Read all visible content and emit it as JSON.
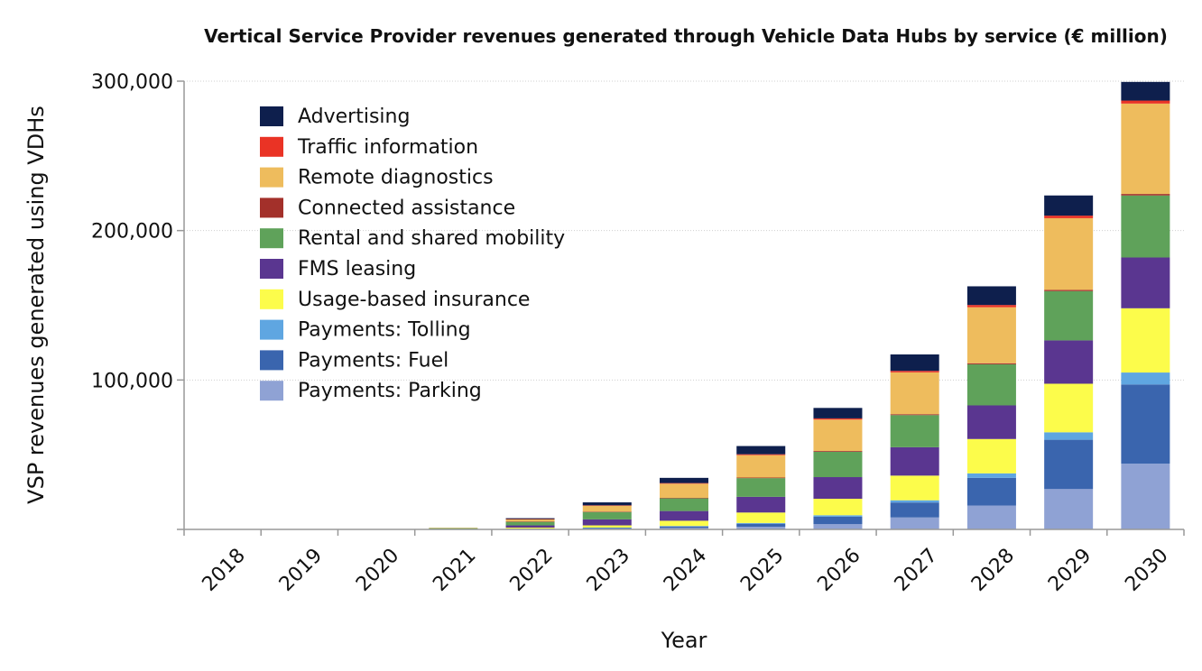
{
  "chart_data": {
    "type": "bar",
    "stacked": true,
    "title": "Vertical Service Provider revenues generated through Vehicle Data Hubs by service (€ million)",
    "xlabel": "Year",
    "ylabel": "VSP revenues generated using VDHs",
    "ylim": [
      0,
      300000
    ],
    "yticks": [
      "300,000",
      "200,000",
      "100,000"
    ],
    "ytick_values": [
      300000,
      200000,
      100000
    ],
    "grid": true,
    "legend_position": "top-left",
    "categories": [
      "2018",
      "2019",
      "2020",
      "2021",
      "2022",
      "2023",
      "2024",
      "2025",
      "2026",
      "2027",
      "2028",
      "2029",
      "2030"
    ],
    "series": [
      {
        "name": "Payments: Parking",
        "color": "#8fa2d4",
        "values": [
          0,
          0,
          0,
          0,
          200,
          500,
          1000,
          1800,
          3500,
          8000,
          16000,
          27000,
          44000
        ]
      },
      {
        "name": "Payments: Fuel",
        "color": "#3a65ae",
        "values": [
          0,
          0,
          0,
          0,
          200,
          500,
          1000,
          2000,
          5000,
          10000,
          18500,
          33000,
          53000
        ]
      },
      {
        "name": "Payments: Tolling",
        "color": "#5fa6e1",
        "values": [
          0,
          0,
          0,
          0,
          100,
          200,
          300,
          500,
          1000,
          1500,
          3000,
          5000,
          8000
        ]
      },
      {
        "name": "Usage-based insurance",
        "color": "#fcfc4b",
        "values": [
          0,
          0,
          0,
          0,
          700,
          1500,
          3500,
          7000,
          11000,
          16500,
          23000,
          32500,
          43000
        ]
      },
      {
        "name": "FMS leasing",
        "color": "#5a3690",
        "values": [
          0,
          0,
          0,
          200,
          1500,
          4000,
          6500,
          10500,
          14500,
          19000,
          22500,
          29000,
          34000
        ]
      },
      {
        "name": "Rental and shared mobility",
        "color": "#5fa25a",
        "values": [
          0,
          0,
          0,
          700,
          2500,
          5000,
          8500,
          12500,
          17000,
          21500,
          27500,
          33000,
          41500
        ]
      },
      {
        "name": "Connected assistance",
        "color": "#a3302a",
        "values": [
          0,
          0,
          0,
          0,
          100,
          200,
          300,
          400,
          500,
          600,
          700,
          800,
          1000
        ]
      },
      {
        "name": "Remote diagnostics",
        "color": "#eebc5d",
        "values": [
          0,
          0,
          0,
          200,
          1500,
          4000,
          9500,
          15000,
          21000,
          28000,
          37500,
          48000,
          60500
        ]
      },
      {
        "name": "Traffic information",
        "color": "#ea3325",
        "values": [
          0,
          0,
          0,
          0,
          100,
          200,
          400,
          600,
          800,
          1000,
          1500,
          1700,
          2000
        ]
      },
      {
        "name": "Advertising",
        "color": "#0e1f4d",
        "values": [
          0,
          0,
          0,
          0,
          600,
          2000,
          3500,
          5500,
          7000,
          11000,
          12500,
          13500,
          12500
        ]
      }
    ]
  }
}
